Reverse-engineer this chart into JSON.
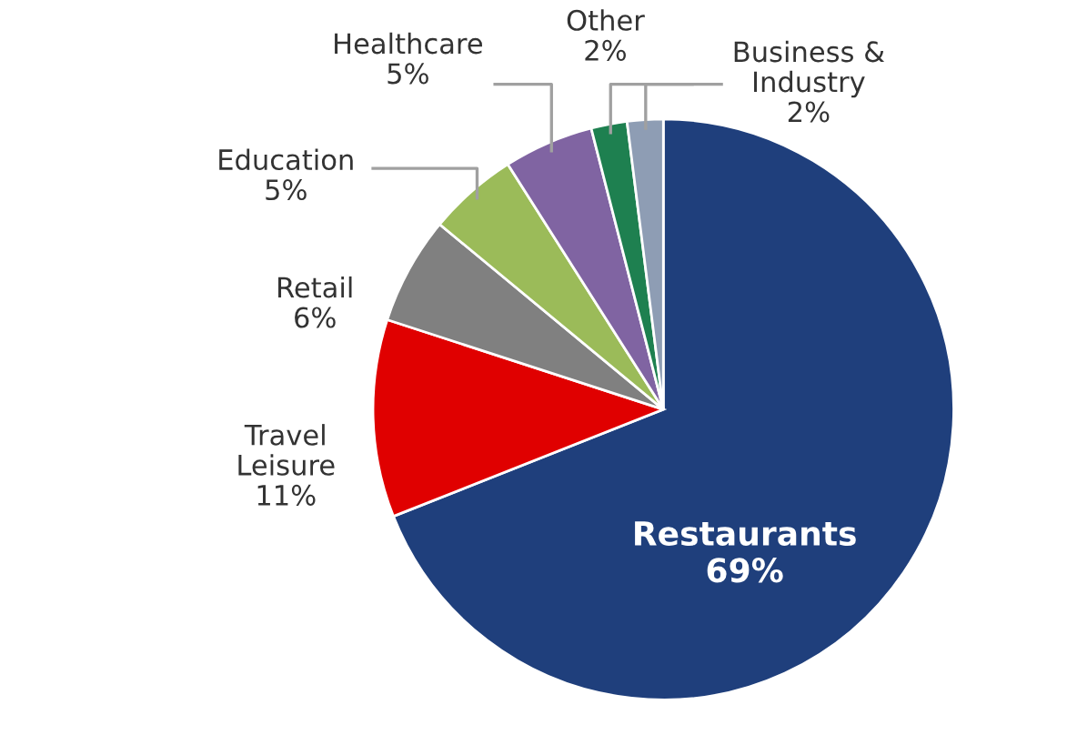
{
  "chart_data": {
    "type": "pie",
    "categories": [
      "Restaurants",
      "Travel\nLeisure",
      "Retail",
      "Education",
      "Healthcare",
      "Other",
      "Business &\nIndustry"
    ],
    "values": [
      69,
      11,
      6,
      5,
      5,
      2,
      2
    ],
    "value_labels": [
      "69%",
      "11%",
      "6%",
      "5%",
      "5%",
      "2%",
      "2%"
    ],
    "colors": [
      "#1f3f7c",
      "#e00000",
      "#808080",
      "#9bbb59",
      "#8064a2",
      "#1e8050",
      "#8e9db4"
    ]
  }
}
